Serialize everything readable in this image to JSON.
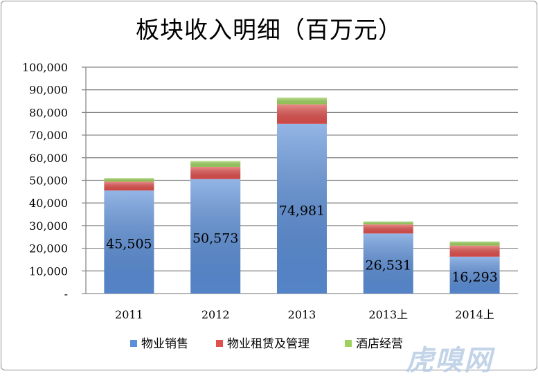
{
  "watermark": "虎嗅网",
  "chart_data": {
    "type": "bar",
    "stacked": true,
    "title": "板块收入明细（百万元）",
    "categories": [
      "2011",
      "2012",
      "2013",
      "2013上",
      "2014上"
    ],
    "series": [
      {
        "name": "物业销售",
        "values": [
          45505,
          50573,
          74981,
          26531,
          16293
        ],
        "color": "#5b8fd9",
        "show_labels": true,
        "labels": [
          "45,505",
          "50,573",
          "74,981",
          "26,531",
          "16,293"
        ]
      },
      {
        "name": "物业租赁及管理",
        "values": [
          3900,
          5400,
          8600,
          4000,
          4900
        ],
        "color": "#e0504d"
      },
      {
        "name": "酒店经营",
        "values": [
          1600,
          2600,
          3000,
          1300,
          1800
        ],
        "color": "#9ed25e"
      }
    ],
    "ylim": [
      0,
      100000
    ],
    "yticks": [
      0,
      10000,
      20000,
      30000,
      40000,
      50000,
      60000,
      70000,
      80000,
      90000,
      100000
    ],
    "ytick_labels": [
      "-",
      "10,000",
      "20,000",
      "30,000",
      "40,000",
      "50,000",
      "60,000",
      "70,000",
      "80,000",
      "90,000",
      "100,000"
    ],
    "grid": true,
    "legend_position": "bottom"
  }
}
